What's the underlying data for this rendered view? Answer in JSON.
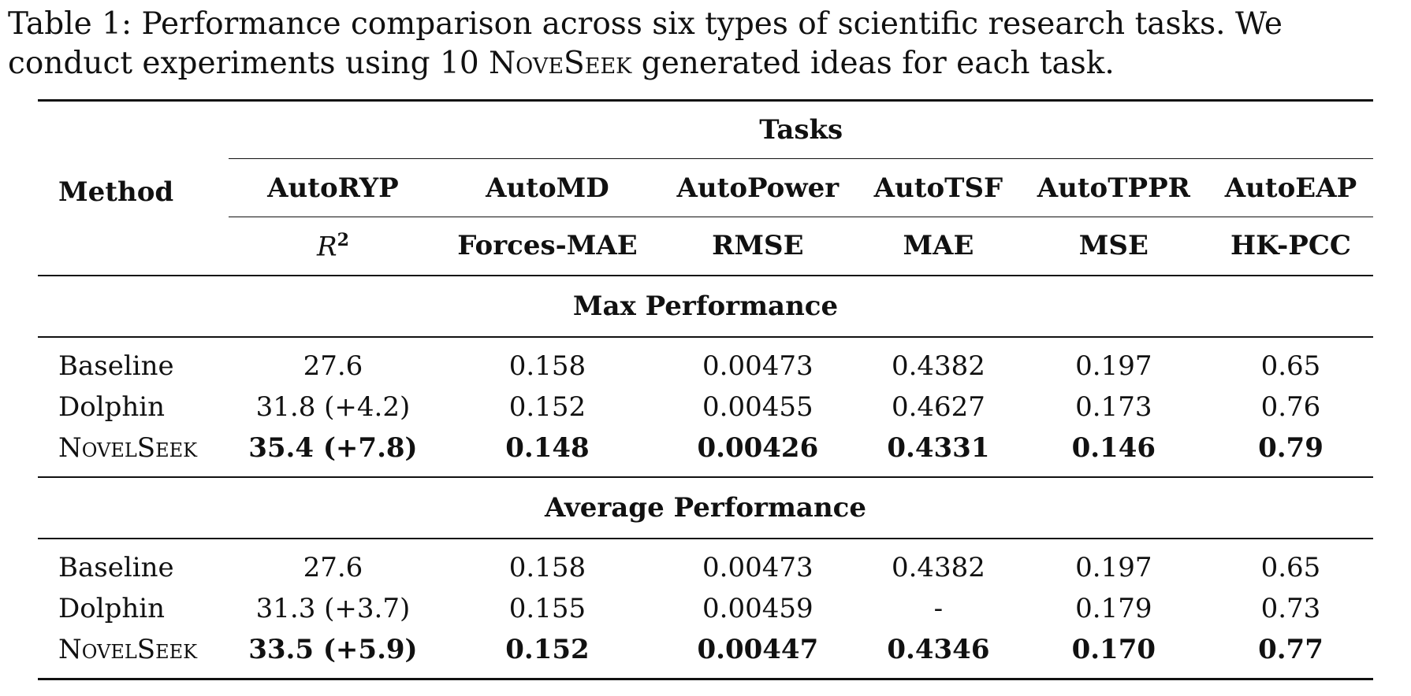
{
  "caption": {
    "text_before": "Table 1: Performance comparison across six types of scientific research tasks. We conduct experiments using 10 ",
    "brand": "NoveSeek",
    "text_after": " generated ideas for each task."
  },
  "header": {
    "method_label": "Method",
    "tasks_label": "Tasks",
    "tasks": [
      "AutoRYP",
      "AutoMD",
      "AutoPower",
      "AutoTSF",
      "AutoTPPR",
      "AutoEAP"
    ],
    "metrics": [
      "R",
      "Forces-MAE",
      "RMSE",
      "MAE",
      "MSE",
      "HK-PCC"
    ],
    "metric_superscript": "2"
  },
  "sections": [
    {
      "title": "Max Performance",
      "rows": [
        {
          "method": "Baseline",
          "values": [
            "27.6",
            "0.158",
            "0.00473",
            "0.4382",
            "0.197",
            "0.65"
          ]
        },
        {
          "method": "Dolphin",
          "values": [
            "31.8 (+4.2)",
            "0.152",
            "0.00455",
            "0.4627",
            "0.173",
            "0.76"
          ]
        },
        {
          "method": "NovelSeek",
          "values": [
            "35.4 (+7.8)",
            "0.148",
            "0.00426",
            "0.4331",
            "0.146",
            "0.79"
          ]
        }
      ]
    },
    {
      "title": "Average Performance",
      "rows": [
        {
          "method": "Baseline",
          "values": [
            "27.6",
            "0.158",
            "0.00473",
            "0.4382",
            "0.197",
            "0.65"
          ]
        },
        {
          "method": "Dolphin",
          "values": [
            "31.3 (+3.7)",
            "0.155",
            "0.00459",
            "-",
            "0.179",
            "0.73"
          ]
        },
        {
          "method": "NovelSeek",
          "values": [
            "33.5 (+5.9)",
            "0.152",
            "0.00447",
            "0.4346",
            "0.170",
            "0.77"
          ]
        }
      ]
    }
  ]
}
